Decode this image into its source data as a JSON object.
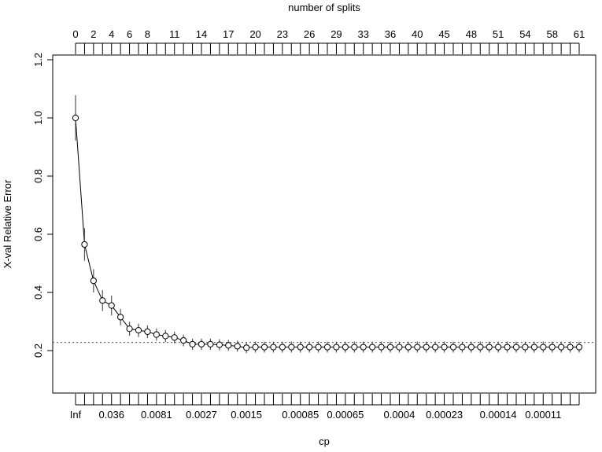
{
  "chart_data": {
    "type": "line",
    "title": "",
    "top_axis_label": "number of splits",
    "xlabel": "cp",
    "ylabel": "X-val Relative Error",
    "ylim": [
      0.0,
      1.2
    ],
    "yticks": [
      "0.2",
      "0.4",
      "0.6",
      "0.8",
      "1.0",
      "1.2"
    ],
    "grid": false,
    "reference_line_y": 0.228,
    "top_tick_labels": [
      {
        "index": 0,
        "label": "0"
      },
      {
        "index": 2,
        "label": "2"
      },
      {
        "index": 4,
        "label": "4"
      },
      {
        "index": 6,
        "label": "6"
      },
      {
        "index": 8,
        "label": "8"
      },
      {
        "index": 11,
        "label": "11"
      },
      {
        "index": 14,
        "label": "14"
      },
      {
        "index": 17,
        "label": "17"
      },
      {
        "index": 20,
        "label": "20"
      },
      {
        "index": 23,
        "label": "23"
      },
      {
        "index": 26,
        "label": "26"
      },
      {
        "index": 29,
        "label": "29"
      },
      {
        "index": 32,
        "label": "33"
      },
      {
        "index": 35,
        "label": "36"
      },
      {
        "index": 38,
        "label": "40"
      },
      {
        "index": 41,
        "label": "45"
      },
      {
        "index": 44,
        "label": "48"
      },
      {
        "index": 47,
        "label": "51"
      },
      {
        "index": 50,
        "label": "54"
      },
      {
        "index": 53,
        "label": "58"
      },
      {
        "index": 56,
        "label": "61"
      }
    ],
    "bottom_tick_labels": [
      {
        "index": 0,
        "label": "Inf"
      },
      {
        "index": 4,
        "label": "0.036"
      },
      {
        "index": 9,
        "label": "0.0081"
      },
      {
        "index": 14,
        "label": "0.0027"
      },
      {
        "index": 19,
        "label": "0.0015"
      },
      {
        "index": 25,
        "label": "0.00085"
      },
      {
        "index": 30,
        "label": "0.00065"
      },
      {
        "index": 36,
        "label": "0.0004"
      },
      {
        "index": 41,
        "label": "0.00023"
      },
      {
        "index": 47,
        "label": "0.00014"
      },
      {
        "index": 52,
        "label": "0.00011"
      }
    ],
    "series": [
      {
        "values": [
          1.0,
          0.565,
          0.44,
          0.372,
          0.355,
          0.315,
          0.275,
          0.27,
          0.265,
          0.255,
          0.25,
          0.245,
          0.235,
          0.222,
          0.222,
          0.222,
          0.22,
          0.218,
          0.215,
          0.21,
          0.212,
          0.212,
          0.212,
          0.212,
          0.212,
          0.212,
          0.212,
          0.212,
          0.212,
          0.212,
          0.212,
          0.212,
          0.212,
          0.212,
          0.212,
          0.212,
          0.212,
          0.212,
          0.212,
          0.212,
          0.212,
          0.212,
          0.212,
          0.212,
          0.212,
          0.212,
          0.212,
          0.212,
          0.212,
          0.212,
          0.212,
          0.212,
          0.212,
          0.212,
          0.212,
          0.212,
          0.212
        ],
        "errors": [
          0.078,
          0.056,
          0.04,
          0.036,
          0.034,
          0.028,
          0.024,
          0.023,
          0.022,
          0.021,
          0.021,
          0.02,
          0.02,
          0.019,
          0.019,
          0.019,
          0.019,
          0.019,
          0.019,
          0.019,
          0.019,
          0.019,
          0.019,
          0.019,
          0.019,
          0.019,
          0.019,
          0.019,
          0.019,
          0.019,
          0.019,
          0.019,
          0.019,
          0.019,
          0.019,
          0.019,
          0.019,
          0.019,
          0.019,
          0.019,
          0.019,
          0.019,
          0.019,
          0.019,
          0.019,
          0.019,
          0.019,
          0.019,
          0.019,
          0.019,
          0.019,
          0.019,
          0.019,
          0.019,
          0.019,
          0.019,
          0.019
        ]
      }
    ]
  }
}
